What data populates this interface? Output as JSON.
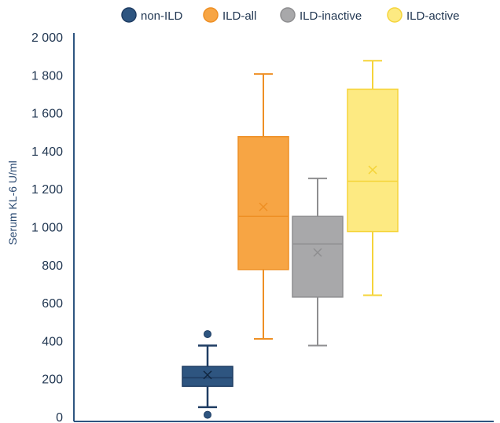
{
  "chart_data": {
    "type": "box",
    "title": "",
    "xlabel": "",
    "ylabel": "Serum KL-6 U/ml",
    "ylim": [
      0,
      2000
    ],
    "yticks": [
      0,
      200,
      400,
      600,
      800,
      1000,
      1200,
      1400,
      1600,
      1800,
      2000
    ],
    "ytick_labels": [
      "0",
      "200",
      "400",
      "600",
      "800",
      "1 000",
      "1 200",
      "1 400",
      "1 600",
      "1 800",
      "2 000"
    ],
    "grid": false,
    "legend_position": "top",
    "series": [
      {
        "name": "non-ILD",
        "color": "#2e5580",
        "stroke": "#1f3d63",
        "min": 50,
        "q1": 160,
        "median": 205,
        "q3": 265,
        "max": 375,
        "mean": 220,
        "outliers": [
          10,
          435
        ]
      },
      {
        "name": "ILD-all",
        "color": "#f7a544",
        "stroke": "#ee8f24",
        "min": 410,
        "q1": 775,
        "median": 1055,
        "q3": 1475,
        "max": 1805,
        "mean": 1105,
        "outliers": []
      },
      {
        "name": "ILD-inactive",
        "color": "#a8a8aa",
        "stroke": "#8e8e90",
        "min": 375,
        "q1": 630,
        "median": 910,
        "q3": 1055,
        "max": 1255,
        "mean": 865,
        "outliers": []
      },
      {
        "name": "ILD-active",
        "color": "#fdea82",
        "stroke": "#f5d43a",
        "min": 640,
        "q1": 975,
        "median": 1240,
        "q3": 1725,
        "max": 1875,
        "mean": 1300,
        "outliers": []
      }
    ]
  }
}
